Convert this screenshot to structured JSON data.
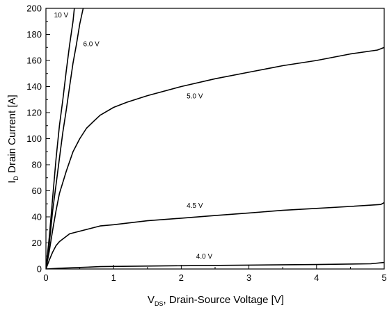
{
  "chart_data": {
    "type": "line",
    "xlabel_main": "V",
    "xlabel_sub": "DS",
    "xlabel_rest": ", Drain-Source Voltage [V]",
    "ylabel_main": "I",
    "ylabel_sub": "D",
    "ylabel_rest": " Drain Current [A]",
    "xlim": [
      0,
      5
    ],
    "ylim": [
      0,
      200
    ],
    "xticks": [
      "0",
      "1",
      "2",
      "3",
      "4",
      "5"
    ],
    "yticks": [
      "0",
      "20",
      "40",
      "60",
      "80",
      "100",
      "120",
      "140",
      "160",
      "180",
      "200"
    ],
    "grid": false,
    "series": [
      {
        "name": "10 V",
        "x": [
          0,
          0.05,
          0.1,
          0.15,
          0.2,
          0.25,
          0.3,
          0.35,
          0.4,
          0.42
        ],
        "y": [
          0,
          25,
          55,
          85,
          110,
          130,
          152,
          172,
          190,
          200
        ]
      },
      {
        "name": "6.0 V",
        "x": [
          0,
          0.05,
          0.1,
          0.15,
          0.2,
          0.25,
          0.3,
          0.35,
          0.4,
          0.45,
          0.5,
          0.55
        ],
        "y": [
          0,
          20,
          45,
          65,
          85,
          105,
          122,
          140,
          158,
          172,
          188,
          200
        ]
      },
      {
        "name": "5.0 V",
        "x": [
          0,
          0.05,
          0.1,
          0.15,
          0.2,
          0.3,
          0.4,
          0.5,
          0.6,
          0.7,
          0.8,
          1.0,
          1.2,
          1.5,
          2.0,
          2.5,
          3.0,
          3.5,
          4.0,
          4.5,
          4.9,
          5.0
        ],
        "y": [
          0,
          14,
          30,
          45,
          58,
          75,
          90,
          100,
          108,
          113,
          118,
          124,
          128,
          133,
          140,
          146,
          151,
          156,
          160,
          165,
          168,
          170
        ]
      },
      {
        "name": "4.5 V",
        "x": [
          0,
          0.05,
          0.1,
          0.15,
          0.2,
          0.35,
          0.5,
          0.8,
          1.0,
          1.5,
          2.0,
          2.5,
          3.0,
          3.5,
          4.0,
          4.5,
          4.95,
          5.0
        ],
        "y": [
          0,
          7,
          13,
          18,
          21,
          27,
          29,
          33,
          34,
          37,
          39,
          41,
          43,
          45,
          46.5,
          48,
          49.5,
          51
        ]
      },
      {
        "name": "4.0 V",
        "x": [
          0,
          0.2,
          0.5,
          0.8,
          1.0,
          2.0,
          3.0,
          4.0,
          4.8,
          5.0
        ],
        "y": [
          0,
          0.6,
          1.2,
          1.8,
          2.0,
          2.5,
          3.0,
          3.4,
          4.0,
          5.0
        ]
      }
    ],
    "annotations": [
      {
        "text": "10 V",
        "x": 0.12,
        "y": 193
      },
      {
        "text": "6.0 V",
        "x": 0.55,
        "y": 171
      },
      {
        "text": "5.0 V",
        "x": 2.08,
        "y": 131
      },
      {
        "text": "4.5 V",
        "x": 2.08,
        "y": 47
      },
      {
        "text": "4.0 V",
        "x": 2.22,
        "y": 8
      }
    ]
  }
}
